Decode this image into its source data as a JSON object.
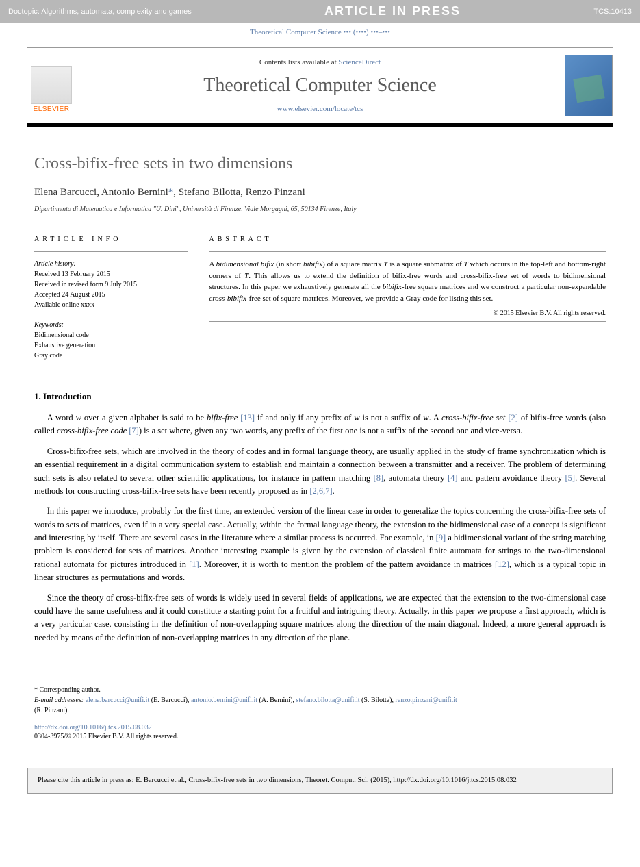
{
  "banner": {
    "doctopic": "Doctopic: Algorithms, automata, complexity and games",
    "status": "ARTICLE IN PRESS",
    "ref": "TCS:10413"
  },
  "journal_ref_line": "Theoretical Computer Science ••• (••••) •••–•••",
  "header": {
    "contents_prefix": "Contents lists available at ",
    "contents_link": "ScienceDirect",
    "journal_title": "Theoretical Computer Science",
    "journal_url": "www.elsevier.com/locate/tcs",
    "publisher": "ELSEVIER"
  },
  "article": {
    "title": "Cross-bifix-free sets in two dimensions",
    "authors": "Elena Barcucci, Antonio Bernini",
    "authors_suffix": ", Stefano Bilotta, Renzo Pinzani",
    "corr_mark": "*",
    "affiliation": "Dipartimento di Matematica e Informatica \"U. Dini\", Università di Firenze, Viale Morgagni, 65, 50134 Firenze, Italy"
  },
  "info": {
    "label": "ARTICLE INFO",
    "history_label": "Article history:",
    "received": "Received 13 February 2015",
    "revised": "Received in revised form 9 July 2015",
    "accepted": "Accepted 24 August 2015",
    "online": "Available online xxxx",
    "keywords_label": "Keywords:",
    "kw1": "Bidimensional code",
    "kw2": "Exhaustive generation",
    "kw3": "Gray code"
  },
  "abstract": {
    "label": "ABSTRACT",
    "text_parts": {
      "p1a": "A ",
      "p1b": "bidimensional bifix",
      "p1c": " (in short ",
      "p1d": "bibifix",
      "p1e": ") of a square matrix ",
      "p1f": "T",
      "p1g": " is a square submatrix of ",
      "p1h": "T",
      "p1i": " which occurs in the top-left and bottom-right corners of ",
      "p1j": "T",
      "p1k": ". This allows us to extend the definition of bifix-free words and cross-bifix-free set of words to bidimensional structures. In this paper we exhaustively generate all the ",
      "p1l": "bibifix",
      "p1m": "-free square matrices and we construct a particular non-expandable ",
      "p1n": "cross-bibifix",
      "p1o": "-free set of square matrices. Moreover, we provide a Gray code for listing this set."
    },
    "copyright": "© 2015 Elsevier B.V. All rights reserved."
  },
  "body": {
    "h1": "1. Introduction",
    "p1": {
      "a": "A word ",
      "b": "w",
      "c": " over a given alphabet is said to be ",
      "d": "bifix-free ",
      "e": "[13]",
      "f": " if and only if any prefix of ",
      "g": "w",
      "h": " is not a suffix of ",
      "i": "w",
      "j": ". A ",
      "k": "cross-bifix-free set ",
      "l": "[2]",
      "m": " of bifix-free words (also called ",
      "n": "cross-bifix-free code ",
      "o": "[7]",
      "p": ") is a set where, given any two words, any prefix of the first one is not a suffix of the second one and vice-versa."
    },
    "p2": {
      "a": "Cross-bifix-free sets, which are involved in the theory of codes and in formal language theory, are usually applied in the study of frame synchronization which is an essential requirement in a digital communication system to establish and maintain a connection between a transmitter and a receiver. The problem of determining such sets is also related to several other scientific applications, for instance in pattern matching ",
      "b": "[8]",
      "c": ", automata theory ",
      "d": "[4]",
      "e": " and pattern avoidance theory ",
      "f": "[5]",
      "g": ". Several methods for constructing cross-bifix-free sets have been recently proposed as in ",
      "h": "[2,6,7]",
      "i": "."
    },
    "p3": {
      "a": "In this paper we introduce, probably for the first time, an extended version of the linear case in order to generalize the topics concerning the cross-bifix-free sets of words to sets of matrices, even if in a very special case. Actually, within the formal language theory, the extension to the bidimensional case of a concept is significant and interesting by itself. There are several cases in the literature where a similar process is occurred. For example, in ",
      "b": "[9]",
      "c": " a bidimensional variant of the string matching problem is considered for sets of matrices. Another interesting example is given by the extension of classical finite automata for strings to the two-dimensional rational automata for pictures introduced in ",
      "d": "[1]",
      "e": ". Moreover, it is worth to mention the problem of the pattern avoidance in matrices ",
      "f": "[12]",
      "g": ", which is a typical topic in linear structures as permutations and words."
    },
    "p4": "Since the theory of cross-bifix-free sets of words is widely used in several fields of applications, we are expected that the extension to the two-dimensional case could have the same usefulness and it could constitute a starting point for a fruitful and intriguing theory. Actually, in this paper we propose a first approach, which is a very particular case, consisting in the definition of non-overlapping square matrices along the direction of the main diagonal. Indeed, a more general approach is needed by means of the definition of non-overlapping matrices in any direction of the plane."
  },
  "footnote": {
    "corr": "* Corresponding author.",
    "email_label": "E-mail addresses:",
    "e1": "elena.barcucci@unifi.it",
    "n1": " (E. Barcucci), ",
    "e2": "antonio.bernini@unifi.it",
    "n2": " (A. Bernini), ",
    "e3": "stefano.bilotta@unifi.it",
    "n3": " (S. Bilotta), ",
    "e4": "renzo.pinzani@unifi.it",
    "n4": " (R. Pinzani)."
  },
  "doi": {
    "url": "http://dx.doi.org/10.1016/j.tcs.2015.08.032",
    "copyright": "0304-3975/© 2015 Elsevier B.V. All rights reserved."
  },
  "citation": "Please cite this article in press as: E. Barcucci et al., Cross-bifix-free sets in two dimensions, Theoret. Comput. Sci. (2015), http://dx.doi.org/10.1016/j.tcs.2015.08.032",
  "colors": {
    "link": "#5b7ba8",
    "banner_bg": "#b8b8b8",
    "title_gray": "#666666",
    "elsevier_orange": "#ff6600"
  }
}
